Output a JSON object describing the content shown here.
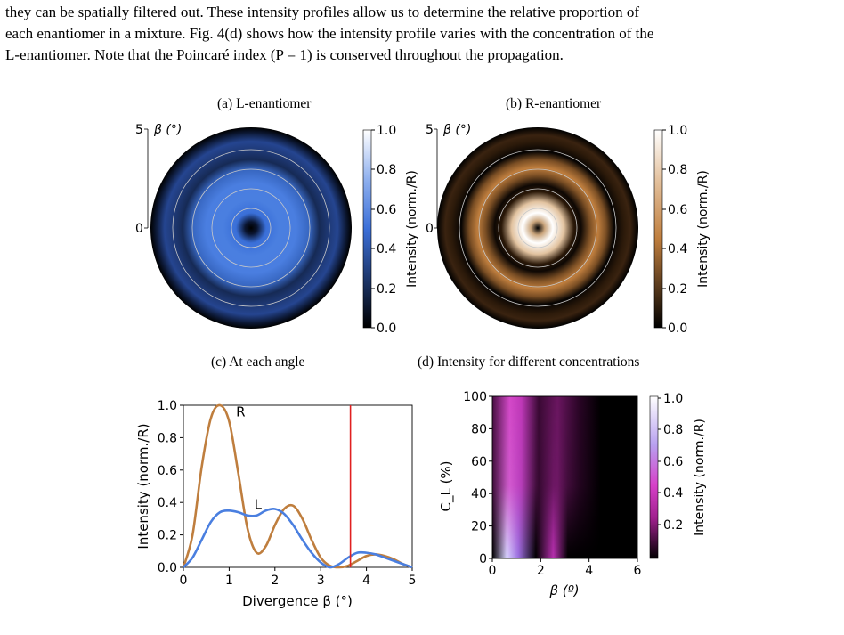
{
  "paragraph": {
    "line1": "they can be spatially filtered out. These intensity profiles allow us to determine the relative proportion of",
    "line2": "each enantiomer in a mixture. Fig. 4(d) shows how the intensity profile varies with the concentration of the",
    "line3": "L-enantiomer. Note that the Poincaré index (P = 1) is conserved throughout the propagation."
  },
  "panels": {
    "a": {
      "caption": "(a) L-enantiomer",
      "axis_label": "β (°)",
      "tick_top": "5",
      "tick_mid": "0",
      "colorbar_label": "Intensity (norm./R)",
      "colorbar_ticks": [
        "1.0",
        "0.8",
        "0.6",
        "0.4",
        "0.2",
        "0.0"
      ]
    },
    "b": {
      "caption": "(b) R-enantiomer",
      "axis_label": "β (°)",
      "tick_top": "5",
      "tick_mid": "0",
      "colorbar_label": "Intensity (norm./R)",
      "colorbar_ticks": [
        "1.0",
        "0.8",
        "0.6",
        "0.4",
        "0.2",
        "0.0"
      ]
    },
    "c": {
      "caption": "(c) At each angle"
    },
    "d": {
      "caption": "(d) Intensity for different concentrations"
    }
  },
  "colors": {
    "L": "#4a7fe0",
    "R": "#bf7e3e",
    "marker": "#e02020"
  },
  "chart_data": [
    {
      "type": "line",
      "title": "(c) At each angle",
      "xlabel": "Divergence β (°)",
      "ylabel": "Intensity (norm./R)",
      "xlim": [
        0,
        5
      ],
      "ylim": [
        0,
        1.0
      ],
      "xticks": [
        "0",
        "1",
        "2",
        "3",
        "4",
        "5"
      ],
      "yticks": [
        "0.0",
        "0.2",
        "0.4",
        "0.6",
        "0.8",
        "1.0"
      ],
      "vline_x": 3.65,
      "series": [
        {
          "name": "R",
          "x": [
            0,
            0.2,
            0.4,
            0.6,
            0.8,
            1.0,
            1.2,
            1.4,
            1.6,
            1.8,
            2.0,
            2.2,
            2.4,
            2.6,
            2.8,
            3.0,
            3.2,
            3.4,
            3.6,
            3.8,
            4.0,
            4.2,
            4.4,
            4.6,
            4.8,
            5.0
          ],
          "y": [
            0,
            0.2,
            0.62,
            0.92,
            1.0,
            0.9,
            0.58,
            0.24,
            0.09,
            0.13,
            0.26,
            0.36,
            0.38,
            0.3,
            0.17,
            0.06,
            0.01,
            0.0,
            0.01,
            0.04,
            0.07,
            0.08,
            0.07,
            0.05,
            0.02,
            0.0
          ]
        },
        {
          "name": "L",
          "x": [
            0,
            0.2,
            0.4,
            0.6,
            0.8,
            1.0,
            1.2,
            1.4,
            1.6,
            1.8,
            2.0,
            2.2,
            2.4,
            2.6,
            2.8,
            3.0,
            3.2,
            3.4,
            3.6,
            3.8,
            4.0,
            4.2,
            4.4,
            4.6,
            4.8,
            5.0
          ],
          "y": [
            0,
            0.06,
            0.17,
            0.28,
            0.34,
            0.35,
            0.34,
            0.32,
            0.32,
            0.35,
            0.36,
            0.33,
            0.26,
            0.17,
            0.09,
            0.03,
            0.0,
            0.02,
            0.06,
            0.09,
            0.09,
            0.08,
            0.06,
            0.04,
            0.02,
            0.0
          ]
        }
      ],
      "annotations": [
        "R",
        "L"
      ]
    },
    {
      "type": "heatmap",
      "title": "(d) Intensity for different concentrations",
      "xlabel": "β (º)",
      "ylabel": "C_L (%)",
      "xlim": [
        0,
        6
      ],
      "ylim": [
        0,
        100
      ],
      "xticks": [
        "0",
        "2",
        "4",
        "6"
      ],
      "yticks": [
        "0",
        "20",
        "40",
        "60",
        "80",
        "100"
      ],
      "colorbar_label": "Intensity (norm./R)",
      "colorbar_ticks": [
        "1.0",
        "0.8",
        "0.6",
        "0.4",
        "0.2"
      ]
    }
  ]
}
